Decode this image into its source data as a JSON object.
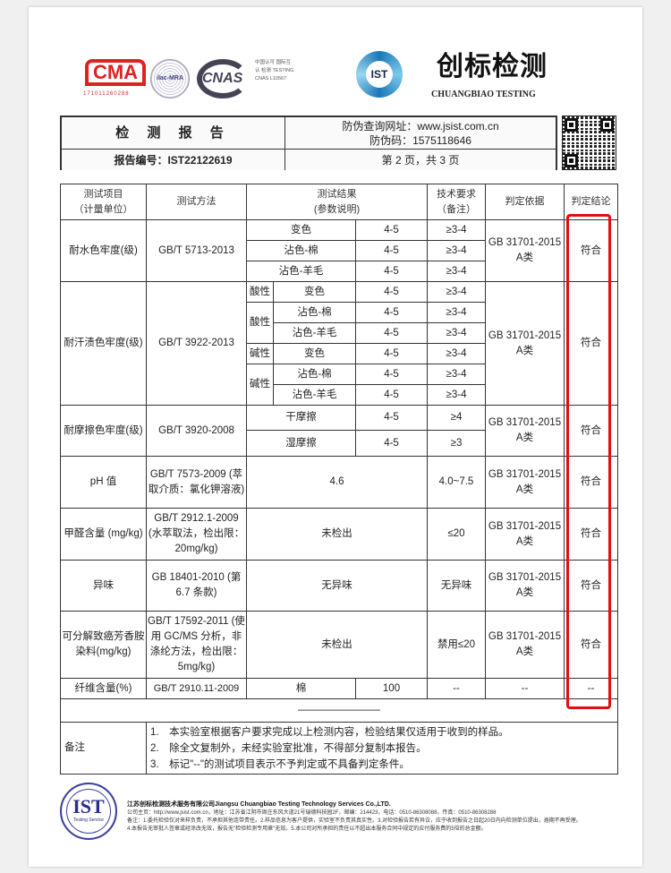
{
  "logos": {
    "cma": "CMA",
    "cma_number": "171011260288",
    "ilac": "ilac-MRA",
    "cnas": "CNAS",
    "cnas_text": "中国认可 国际互认 检测 TESTING CNAS L10567",
    "ist": "IST",
    "brand_cn": "创标检测",
    "brand_en": "CHUANGBIAO TESTING"
  },
  "header": {
    "title": "检 测 报 告",
    "verify_url": "防伪查询网址：www.jsist.com.cn",
    "verify_code": "防伪码：1575118646",
    "report_no": "报告编号：IST22122619",
    "page": "第 2 页，共 3 页"
  },
  "table": {
    "headers": [
      "测试项目\n（计量单位）",
      "测试方法",
      "测试结果\n(参数说明)",
      "技术要求\n（备注）",
      "判定依据",
      "判定结论"
    ],
    "basis": "GB 31701-2015 A类",
    "water": {
      "item": "耐水色牢度(级)",
      "method": "GB/T 5713-2013",
      "rows": [
        {
          "label": "变色",
          "value": "4-5",
          "req": "≥3-4"
        },
        {
          "label": "沾色-棉",
          "value": "4-5",
          "req": "≥3-4"
        },
        {
          "label": "沾色-羊毛",
          "value": "4-5",
          "req": "≥3-4"
        }
      ],
      "conclusion": "符合"
    },
    "sweat": {
      "item": "耐汗渍色牢度(级)",
      "method": "GB/T 3922-2013",
      "acid": "酸性",
      "alkali": "碱性",
      "rows": [
        {
          "label": "变色",
          "value": "4-5",
          "req": "≥3-4"
        },
        {
          "label": "沾色-棉",
          "value": "4-5",
          "req": "≥3-4"
        },
        {
          "label": "沾色-羊毛",
          "value": "4-5",
          "req": "≥3-4"
        },
        {
          "label": "变色",
          "value": "4-5",
          "req": "≥3-4"
        },
        {
          "label": "沾色-棉",
          "value": "4-5",
          "req": "≥3-4"
        },
        {
          "label": "沾色-羊毛",
          "value": "4-5",
          "req": "≥3-4"
        }
      ],
      "conclusion": "符合"
    },
    "rub": {
      "item": "耐摩擦色牢度(级)",
      "method": "GB/T 3920-2008",
      "rows": [
        {
          "label": "干摩擦",
          "value": "4-5",
          "req": "≥4"
        },
        {
          "label": "湿摩擦",
          "value": "4-5",
          "req": "≥3"
        }
      ],
      "conclusion": "符合"
    },
    "ph": {
      "item": "pH 值",
      "method": "GB/T 7573-2009 (萃取介质：氯化钾溶液)",
      "result": "4.6",
      "req": "4.0~7.5",
      "conclusion": "符合"
    },
    "formaldehyde": {
      "item": "甲醛含量 (mg/kg)",
      "method": "GB/T 2912.1-2009 (水萃取法，检出限：20mg/kg)",
      "result": "未检出",
      "req": "≤20",
      "conclusion": "符合"
    },
    "odor": {
      "item": "异味",
      "method": "GB 18401-2010 (第 6.7 条款)",
      "result": "无异味",
      "req": "无异味",
      "conclusion": "符合"
    },
    "amine": {
      "item": "可分解致癌芳香胺染料(mg/kg)",
      "method": "GB/T 17592-2011 (使用 GC/MS 分析，非涤纶方法，检出限：5mg/kg)",
      "result": "未检出",
      "req": "禁用≤20",
      "conclusion": "符合"
    },
    "fiber": {
      "item": "纤维含量(%)",
      "method": "GB/T 2910.11-2009",
      "label": "棉",
      "value": "100",
      "req": "--",
      "basis": "--",
      "conclusion": "--"
    },
    "end_mark": "————————",
    "notes_label": "备注",
    "notes": [
      "1.　本实验室根据客户要求完成以上检测内容，检验结果仅适用于收到的样品。",
      "2.　除全文复制外，未经实验室批准，不得部分复制本报告。",
      "3.　标记\"--\"的测试项目表示不予判定或不具备判定条件。"
    ]
  },
  "highlight_color": "#e01010",
  "footer": {
    "seal": "IST",
    "seal_sub": "Testing Service",
    "company": "江苏创标检测技术服务有限公司Jiangsu Chuangbiao Testing Technology Services Co.,LTD.",
    "line1": "公司主页：http://www.jsist.com.cn，地址：江苏省江阴市周庄东风大道21号瑞德科技园2F，邮编：214423，电话：0510-86308088，传真：0510-86308288",
    "line2": "备注：1.委托检验仅对来样负责，不承担其他连带责任。2.样品信息为客户提供，实验室不负责其真实性。3.对检验报告若有异议，应于收到报告之日起20日内向检测单位提出，逾期不再受理。",
    "line3": "4.本报告无审批人签章或经涂改无效，报告无\"检验检测专用章\"无效。5.本公司对所承担的责任以不超出本服务合同中规定的应付服务费的5倍的总金额。"
  }
}
